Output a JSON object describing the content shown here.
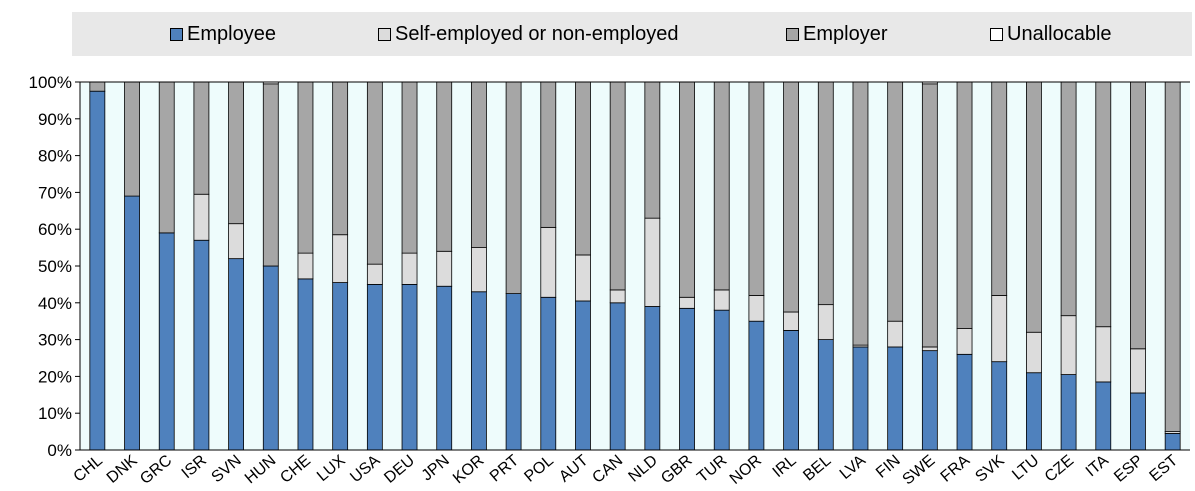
{
  "chart_data": {
    "type": "bar",
    "stacked": true,
    "categories": [
      "CHL",
      "DNK",
      "GRC",
      "ISR",
      "SVN",
      "HUN",
      "CHE",
      "LUX",
      "USA",
      "DEU",
      "JPN",
      "KOR",
      "PRT",
      "POL",
      "AUT",
      "CAN",
      "NLD",
      "GBR",
      "TUR",
      "NOR",
      "IRL",
      "BEL",
      "LVA",
      "FIN",
      "SWE",
      "FRA",
      "SVK",
      "LTU",
      "CZE",
      "ITA",
      "ESP",
      "EST"
    ],
    "series": [
      {
        "name": "Employee",
        "color": "#4f81bd",
        "values": [
          97.5,
          69,
          59,
          57,
          52,
          50,
          46.5,
          45.5,
          45,
          45,
          44.5,
          43,
          42.5,
          41.5,
          40.5,
          40,
          39,
          38.5,
          38,
          35,
          32.5,
          30,
          28,
          28,
          27,
          26,
          24,
          21,
          20.5,
          18.5,
          15.5,
          4.5
        ]
      },
      {
        "name": "Self-employed or non-employed",
        "color": "#dcdcdc",
        "values": [
          0,
          0,
          0,
          12.5,
          9.5,
          0,
          7,
          13,
          5.5,
          8.5,
          9.5,
          12,
          0,
          19,
          12.5,
          3.5,
          24,
          3,
          5.5,
          7,
          5,
          9.5,
          0.5,
          7,
          1,
          7,
          18,
          11,
          16,
          15,
          12,
          0.5
        ]
      },
      {
        "name": "Employer",
        "color": "#a6a6a6",
        "values": [
          2.5,
          31,
          41,
          30.5,
          38.5,
          49.5,
          46.5,
          41.5,
          49.5,
          46.5,
          46,
          45,
          57.5,
          39.5,
          47,
          56.5,
          37,
          58.5,
          56.5,
          58,
          62.5,
          60.5,
          71.5,
          65,
          71.5,
          67,
          58,
          68,
          63.5,
          66.5,
          72.5,
          95
        ]
      },
      {
        "name": "Unallocable",
        "color": "#ffffff",
        "values": [
          0,
          0,
          0,
          0,
          0,
          0.5,
          0,
          0,
          0,
          0,
          0,
          0,
          0,
          0,
          0,
          0,
          0,
          0,
          0,
          0,
          0,
          0,
          0,
          0,
          0.5,
          0,
          0,
          0,
          0,
          0,
          0,
          0
        ]
      }
    ],
    "yticks": [
      "0%",
      "10%",
      "20%",
      "30%",
      "40%",
      "50%",
      "60%",
      "70%",
      "80%",
      "90%",
      "100%"
    ],
    "ylim": [
      0,
      100
    ],
    "legend_position": "top",
    "background": "#eefcfc"
  }
}
